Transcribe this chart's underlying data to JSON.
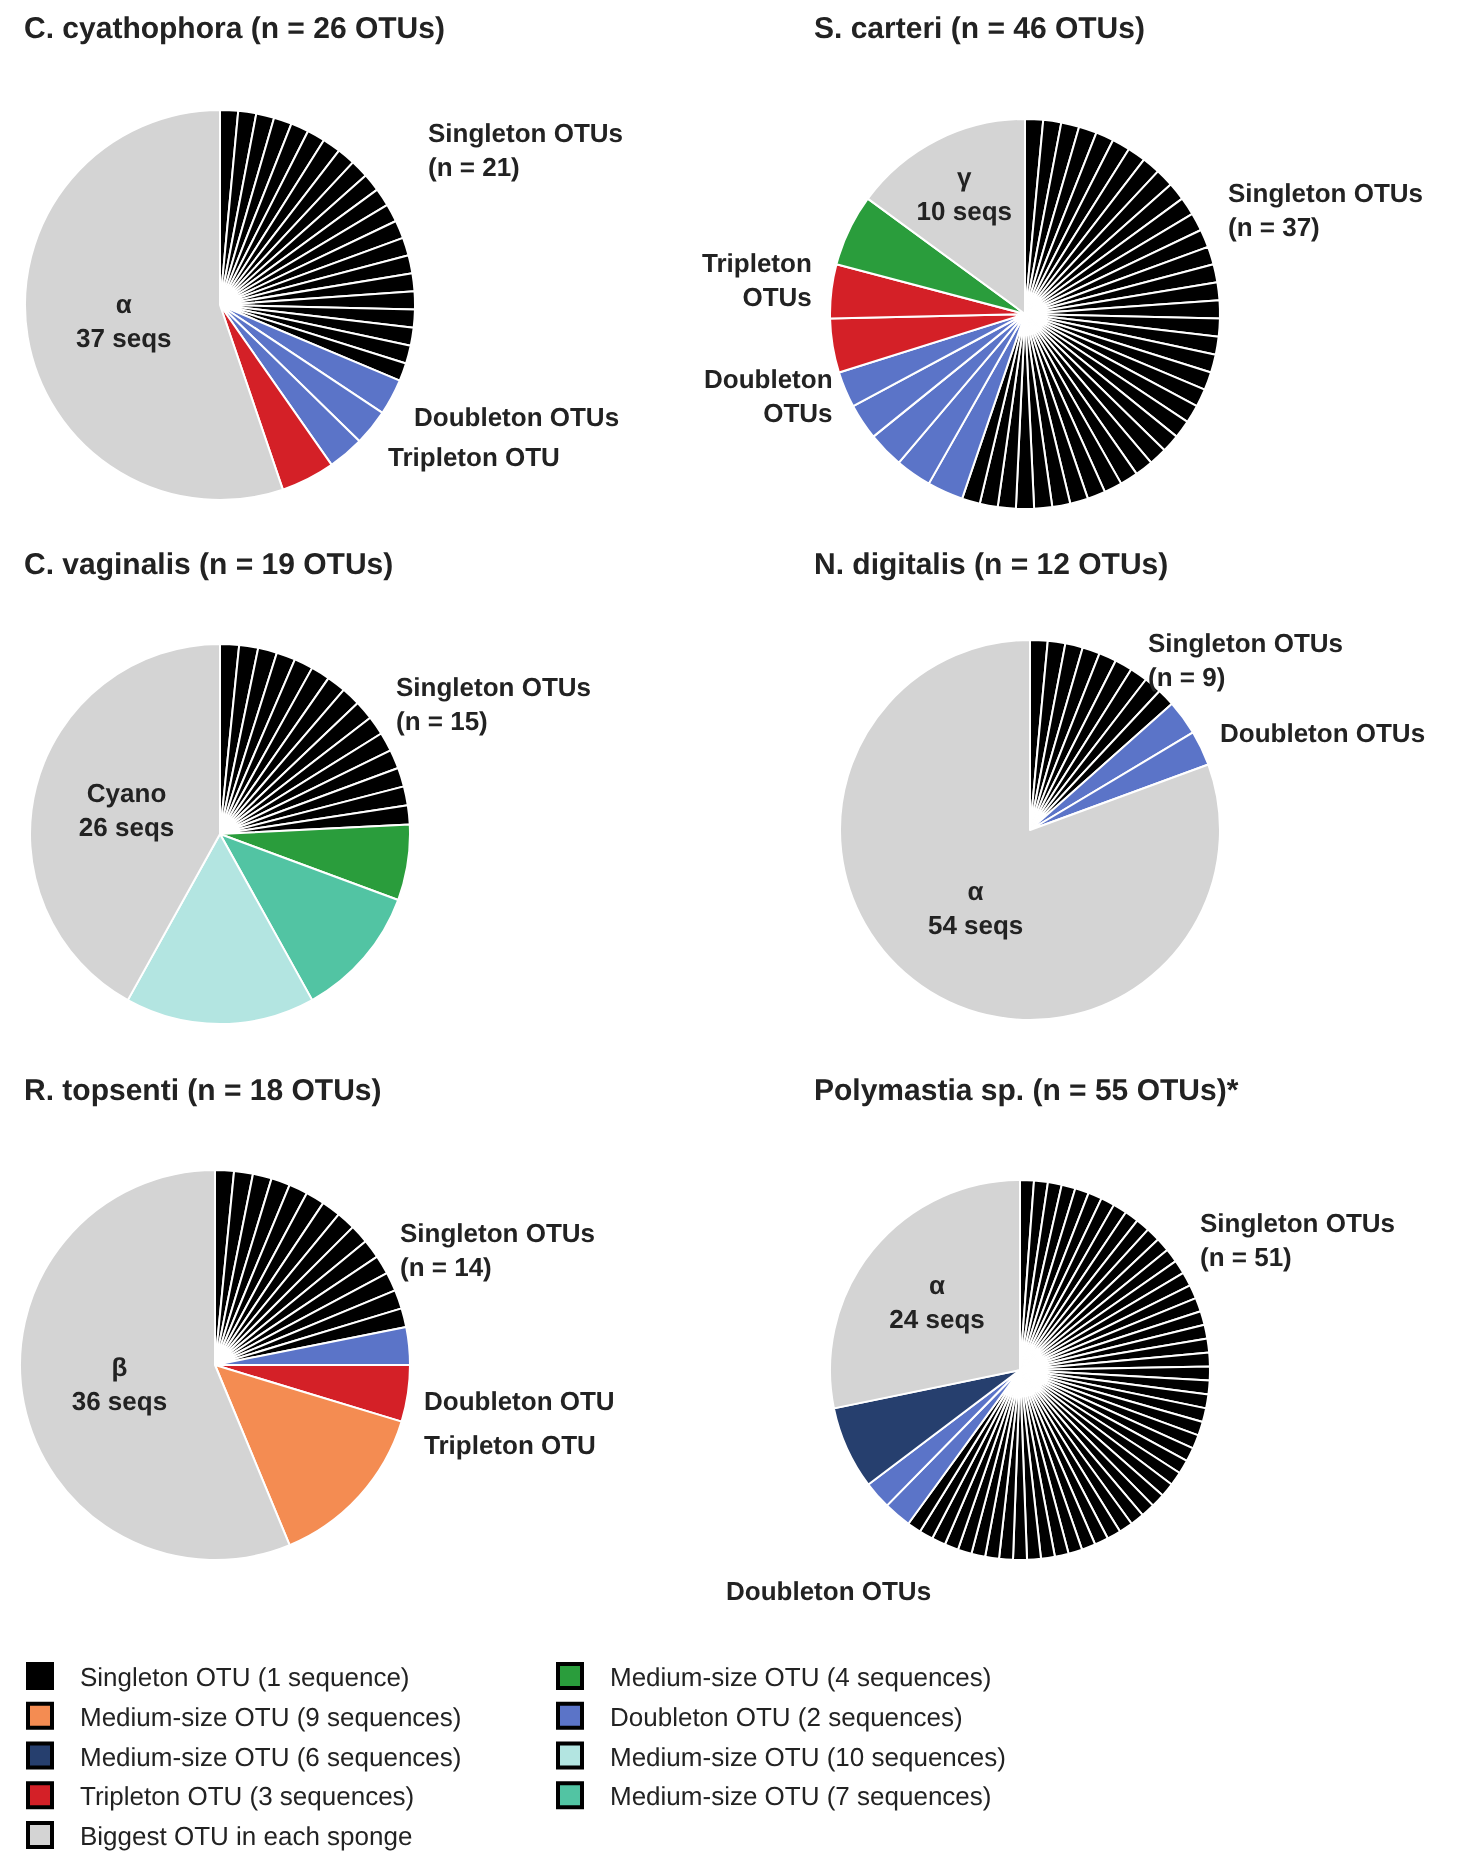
{
  "chart_data": [
    {
      "type": "pie",
      "title": "C. cyathophora (n = 26 OTUs)",
      "categories": [
        null,
        null,
        null,
        null,
        null,
        null,
        null,
        null,
        null,
        null,
        null,
        null,
        null,
        null,
        null,
        null,
        null,
        null,
        null,
        null,
        null,
        null,
        null,
        null,
        null,
        "α"
      ],
      "values": [
        1,
        1,
        1,
        1,
        1,
        1,
        1,
        1,
        1,
        1,
        1,
        1,
        1,
        1,
        1,
        1,
        1,
        1,
        1,
        1,
        1,
        2,
        2,
        2,
        3,
        37
      ],
      "value_labels": [
        null,
        null,
        null,
        null,
        null,
        null,
        null,
        null,
        null,
        null,
        null,
        null,
        null,
        null,
        null,
        null,
        null,
        null,
        null,
        null,
        null,
        null,
        null,
        null,
        null,
        "37 seqs"
      ],
      "colors": [
        "#000000",
        "#000000",
        "#000000",
        "#000000",
        "#000000",
        "#000000",
        "#000000",
        "#000000",
        "#000000",
        "#000000",
        "#000000",
        "#000000",
        "#000000",
        "#000000",
        "#000000",
        "#000000",
        "#000000",
        "#000000",
        "#000000",
        "#000000",
        "#000000",
        "#5b74c8",
        "#5b74c8",
        "#5b74c8",
        "#d42027",
        "#d4d4d4"
      ],
      "annotations": [
        "Singleton OTUs\n(n = 21)",
        "Doubleton OTUs",
        "Tripleton OTU"
      ]
    },
    {
      "type": "pie",
      "title": "S. carteri (n = 46 OTUs)",
      "categories": [
        null,
        null,
        null,
        null,
        null,
        null,
        null,
        null,
        null,
        null,
        null,
        null,
        null,
        null,
        null,
        null,
        null,
        null,
        null,
        null,
        null,
        null,
        null,
        null,
        null,
        null,
        null,
        null,
        null,
        null,
        null,
        null,
        null,
        null,
        null,
        null,
        null,
        null,
        null,
        null,
        null,
        null,
        null,
        null,
        null,
        "γ"
      ],
      "values": [
        1,
        1,
        1,
        1,
        1,
        1,
        1,
        1,
        1,
        1,
        1,
        1,
        1,
        1,
        1,
        1,
        1,
        1,
        1,
        1,
        1,
        1,
        1,
        1,
        1,
        1,
        1,
        1,
        1,
        1,
        1,
        1,
        1,
        1,
        1,
        1,
        1,
        2,
        2,
        2,
        2,
        2,
        3,
        3,
        4,
        10
      ],
      "value_labels": [
        null,
        null,
        null,
        null,
        null,
        null,
        null,
        null,
        null,
        null,
        null,
        null,
        null,
        null,
        null,
        null,
        null,
        null,
        null,
        null,
        null,
        null,
        null,
        null,
        null,
        null,
        null,
        null,
        null,
        null,
        null,
        null,
        null,
        null,
        null,
        null,
        null,
        null,
        null,
        null,
        null,
        null,
        null,
        null,
        null,
        "10 seqs"
      ],
      "colors": [
        "#000000",
        "#000000",
        "#000000",
        "#000000",
        "#000000",
        "#000000",
        "#000000",
        "#000000",
        "#000000",
        "#000000",
        "#000000",
        "#000000",
        "#000000",
        "#000000",
        "#000000",
        "#000000",
        "#000000",
        "#000000",
        "#000000",
        "#000000",
        "#000000",
        "#000000",
        "#000000",
        "#000000",
        "#000000",
        "#000000",
        "#000000",
        "#000000",
        "#000000",
        "#000000",
        "#000000",
        "#000000",
        "#000000",
        "#000000",
        "#000000",
        "#000000",
        "#000000",
        "#5b74c8",
        "#5b74c8",
        "#5b74c8",
        "#5b74c8",
        "#5b74c8",
        "#d42027",
        "#d42027",
        "#2a9d3c",
        "#d4d4d4"
      ],
      "annotations": [
        "Singleton OTUs\n(n = 37)",
        "Tripleton\nOTUs",
        "Doubleton\nOTUs"
      ]
    },
    {
      "type": "pie",
      "title": "C. vaginalis (n = 19 OTUs)",
      "categories": [
        null,
        null,
        null,
        null,
        null,
        null,
        null,
        null,
        null,
        null,
        null,
        null,
        null,
        null,
        null,
        null,
        null,
        null,
        "Cyano"
      ],
      "values": [
        1,
        1,
        1,
        1,
        1,
        1,
        1,
        1,
        1,
        1,
        1,
        1,
        1,
        1,
        1,
        4,
        7,
        10,
        26
      ],
      "value_labels": [
        null,
        null,
        null,
        null,
        null,
        null,
        null,
        null,
        null,
        null,
        null,
        null,
        null,
        null,
        null,
        null,
        null,
        null,
        "26 seqs"
      ],
      "colors": [
        "#000000",
        "#000000",
        "#000000",
        "#000000",
        "#000000",
        "#000000",
        "#000000",
        "#000000",
        "#000000",
        "#000000",
        "#000000",
        "#000000",
        "#000000",
        "#000000",
        "#000000",
        "#2a9d3c",
        "#52c4a3",
        "#b3e5e1",
        "#d4d4d4"
      ],
      "annotations": [
        "Singleton OTUs\n(n = 15)"
      ]
    },
    {
      "type": "pie",
      "title": "N. digitalis (n = 12 OTUs)",
      "categories": [
        null,
        null,
        null,
        null,
        null,
        null,
        null,
        null,
        null,
        null,
        null,
        "α"
      ],
      "values": [
        1,
        1,
        1,
        1,
        1,
        1,
        1,
        1,
        1,
        2,
        2,
        54
      ],
      "value_labels": [
        null,
        null,
        null,
        null,
        null,
        null,
        null,
        null,
        null,
        null,
        null,
        "54 seqs"
      ],
      "colors": [
        "#000000",
        "#000000",
        "#000000",
        "#000000",
        "#000000",
        "#000000",
        "#000000",
        "#000000",
        "#000000",
        "#5b74c8",
        "#5b74c8",
        "#d4d4d4"
      ],
      "annotations": [
        "Singleton OTUs\n(n = 9)",
        "Doubleton OTUs"
      ]
    },
    {
      "type": "pie",
      "title": "R. topsenti (n = 18 OTUs)",
      "categories": [
        null,
        null,
        null,
        null,
        null,
        null,
        null,
        null,
        null,
        null,
        null,
        null,
        null,
        null,
        null,
        null,
        null,
        "β"
      ],
      "values": [
        1,
        1,
        1,
        1,
        1,
        1,
        1,
        1,
        1,
        1,
        1,
        1,
        1,
        1,
        2,
        3,
        9,
        36
      ],
      "value_labels": [
        null,
        null,
        null,
        null,
        null,
        null,
        null,
        null,
        null,
        null,
        null,
        null,
        null,
        null,
        null,
        null,
        null,
        "36 seqs"
      ],
      "colors": [
        "#000000",
        "#000000",
        "#000000",
        "#000000",
        "#000000",
        "#000000",
        "#000000",
        "#000000",
        "#000000",
        "#000000",
        "#000000",
        "#000000",
        "#000000",
        "#000000",
        "#5b74c8",
        "#d42027",
        "#f48c52",
        "#d4d4d4"
      ],
      "annotations": [
        "Singleton OTUs\n(n = 14)",
        "Doubleton OTU",
        "Tripleton OTU"
      ]
    },
    {
      "type": "pie",
      "title": "Polymastia sp. (n = 55 OTUs)*",
      "categories": [
        null,
        null,
        null,
        null,
        null,
        null,
        null,
        null,
        null,
        null,
        null,
        null,
        null,
        null,
        null,
        null,
        null,
        null,
        null,
        null,
        null,
        null,
        null,
        null,
        null,
        null,
        null,
        null,
        null,
        null,
        null,
        null,
        null,
        null,
        null,
        null,
        null,
        null,
        null,
        null,
        null,
        null,
        null,
        null,
        null,
        null,
        null,
        null,
        null,
        null,
        null,
        null,
        null,
        null,
        "α"
      ],
      "values": [
        1,
        1,
        1,
        1,
        1,
        1,
        1,
        1,
        1,
        1,
        1,
        1,
        1,
        1,
        1,
        1,
        1,
        1,
        1,
        1,
        1,
        1,
        1,
        1,
        1,
        1,
        1,
        1,
        1,
        1,
        1,
        1,
        1,
        1,
        1,
        1,
        1,
        1,
        1,
        1,
        1,
        1,
        1,
        1,
        1,
        1,
        1,
        1,
        1,
        1,
        1,
        2,
        2,
        6,
        24
      ],
      "value_labels": [
        null,
        null,
        null,
        null,
        null,
        null,
        null,
        null,
        null,
        null,
        null,
        null,
        null,
        null,
        null,
        null,
        null,
        null,
        null,
        null,
        null,
        null,
        null,
        null,
        null,
        null,
        null,
        null,
        null,
        null,
        null,
        null,
        null,
        null,
        null,
        null,
        null,
        null,
        null,
        null,
        null,
        null,
        null,
        null,
        null,
        null,
        null,
        null,
        null,
        null,
        null,
        null,
        null,
        null,
        "24 seqs"
      ],
      "colors": [
        "#000000",
        "#000000",
        "#000000",
        "#000000",
        "#000000",
        "#000000",
        "#000000",
        "#000000",
        "#000000",
        "#000000",
        "#000000",
        "#000000",
        "#000000",
        "#000000",
        "#000000",
        "#000000",
        "#000000",
        "#000000",
        "#000000",
        "#000000",
        "#000000",
        "#000000",
        "#000000",
        "#000000",
        "#000000",
        "#000000",
        "#000000",
        "#000000",
        "#000000",
        "#000000",
        "#000000",
        "#000000",
        "#000000",
        "#000000",
        "#000000",
        "#000000",
        "#000000",
        "#000000",
        "#000000",
        "#000000",
        "#000000",
        "#000000",
        "#000000",
        "#000000",
        "#000000",
        "#000000",
        "#000000",
        "#000000",
        "#000000",
        "#000000",
        "#000000",
        "#5b74c8",
        "#5b74c8",
        "#263f6e",
        "#d4d4d4"
      ],
      "annotations": [
        "Singleton OTUs\n(n = 51)",
        "Doubleton OTUs"
      ]
    },
    {
      "type": "other",
      "legend": "bottom",
      "series": [
        {
          "name": "Singleton OTU (1 sequence)",
          "color": "#000000"
        },
        {
          "name": "Medium-size OTU (4 sequences)",
          "color": "#2a9d3c"
        },
        {
          "name": "Medium-size OTU (9 sequences)",
          "color": "#f48c52"
        },
        {
          "name": "Doubleton OTU (2 sequences)",
          "color": "#5b74c8"
        },
        {
          "name": "Medium-size OTU (6 sequences)",
          "color": "#263f6e"
        },
        {
          "name": "Medium-size OTU (10 sequences)",
          "color": "#b3e5e1"
        },
        {
          "name": "Tripleton OTU (3 sequences)",
          "color": "#d42027"
        },
        {
          "name": "Medium-size OTU (7 sequences)",
          "color": "#52c4a3"
        },
        {
          "name": "Biggest OTU in each sponge",
          "color": "#d4d4d4"
        }
      ]
    }
  ]
}
